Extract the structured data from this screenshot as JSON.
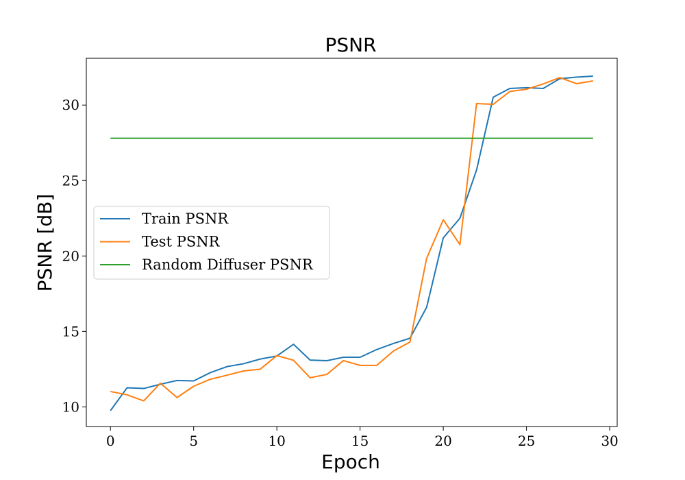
{
  "chart_data": {
    "type": "line",
    "title": "PSNR",
    "xlabel": "Epoch",
    "ylabel": "PSNR [dB]",
    "xlim": [
      -1.45,
      30.45
    ],
    "ylim": [
      8.7,
      33.1
    ],
    "xticks": [
      0,
      5,
      10,
      15,
      20,
      25,
      30
    ],
    "yticks": [
      10,
      15,
      20,
      25,
      30
    ],
    "grid": false,
    "legend_position": "center-left",
    "series": [
      {
        "name": "Train PSNR",
        "color": "#1f77b4",
        "x": [
          0,
          1,
          2,
          3,
          4,
          5,
          6,
          7,
          8,
          9,
          10,
          11,
          12,
          13,
          14,
          15,
          16,
          17,
          18,
          19,
          20,
          21,
          22,
          23,
          24,
          25,
          26,
          27,
          28,
          29
        ],
        "values": [
          9.75,
          11.27,
          11.22,
          11.5,
          11.75,
          11.72,
          12.27,
          12.67,
          12.86,
          13.17,
          13.37,
          14.15,
          13.1,
          13.06,
          13.29,
          13.29,
          13.8,
          14.2,
          14.55,
          16.6,
          21.2,
          22.5,
          25.7,
          30.52,
          31.1,
          31.15,
          31.1,
          31.75,
          31.85,
          31.92
        ]
      },
      {
        "name": "Test PSNR",
        "color": "#ff7f0e",
        "x": [
          0,
          1,
          2,
          3,
          4,
          5,
          6,
          7,
          8,
          9,
          10,
          11,
          12,
          13,
          14,
          15,
          16,
          17,
          18,
          19,
          20,
          21,
          22,
          23,
          24,
          25,
          26,
          27,
          28,
          29
        ],
        "values": [
          11.02,
          10.8,
          10.4,
          11.57,
          10.62,
          11.37,
          11.83,
          12.1,
          12.38,
          12.5,
          13.4,
          13.09,
          11.93,
          12.15,
          13.07,
          12.75,
          12.75,
          13.7,
          14.3,
          19.85,
          22.4,
          20.75,
          30.1,
          30.05,
          30.9,
          31.05,
          31.4,
          31.82,
          31.42,
          31.6
        ]
      },
      {
        "name": "Random Diffuser PSNR",
        "color": "#2ca02c",
        "x": [
          0,
          29
        ],
        "values": [
          27.8,
          27.8
        ]
      }
    ]
  }
}
